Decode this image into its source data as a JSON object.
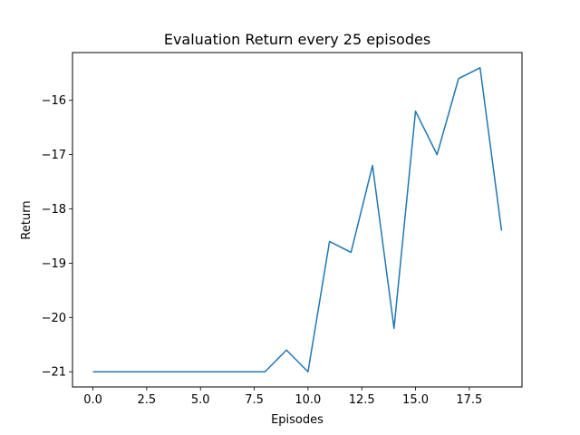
{
  "chart_data": {
    "type": "line",
    "title": "Evaluation Return every 25 episodes",
    "xlabel": "Episodes",
    "ylabel": "Return",
    "xlim": [
      -0.95,
      19.95
    ],
    "ylim": [
      -21.28,
      -15.12
    ],
    "xticks": [
      0,
      2.5,
      5,
      7.5,
      10,
      12.5,
      15,
      17.5
    ],
    "xtick_labels": [
      "0.0",
      "2.5",
      "5.0",
      "7.5",
      "10.0",
      "12.5",
      "15.0",
      "17.5"
    ],
    "yticks": [
      -21,
      -20,
      -19,
      -18,
      -17,
      -16
    ],
    "ytick_labels": [
      "−21",
      "−20",
      "−19",
      "−18",
      "−17",
      "−16"
    ],
    "grid": false,
    "series": [
      {
        "color": "#1f77b4",
        "x": [
          0,
          1,
          2,
          3,
          4,
          5,
          6,
          7,
          8,
          9,
          10,
          11,
          12,
          13,
          14,
          15,
          16,
          17,
          18,
          19
        ],
        "y": [
          -21,
          -21,
          -21,
          -21,
          -21,
          -21,
          -21,
          -21,
          -21,
          -20.6,
          -21,
          -18.6,
          -18.8,
          -17.2,
          -20.2,
          -16.2,
          -17,
          -15.6,
          -15.4,
          -18.4
        ]
      }
    ]
  }
}
